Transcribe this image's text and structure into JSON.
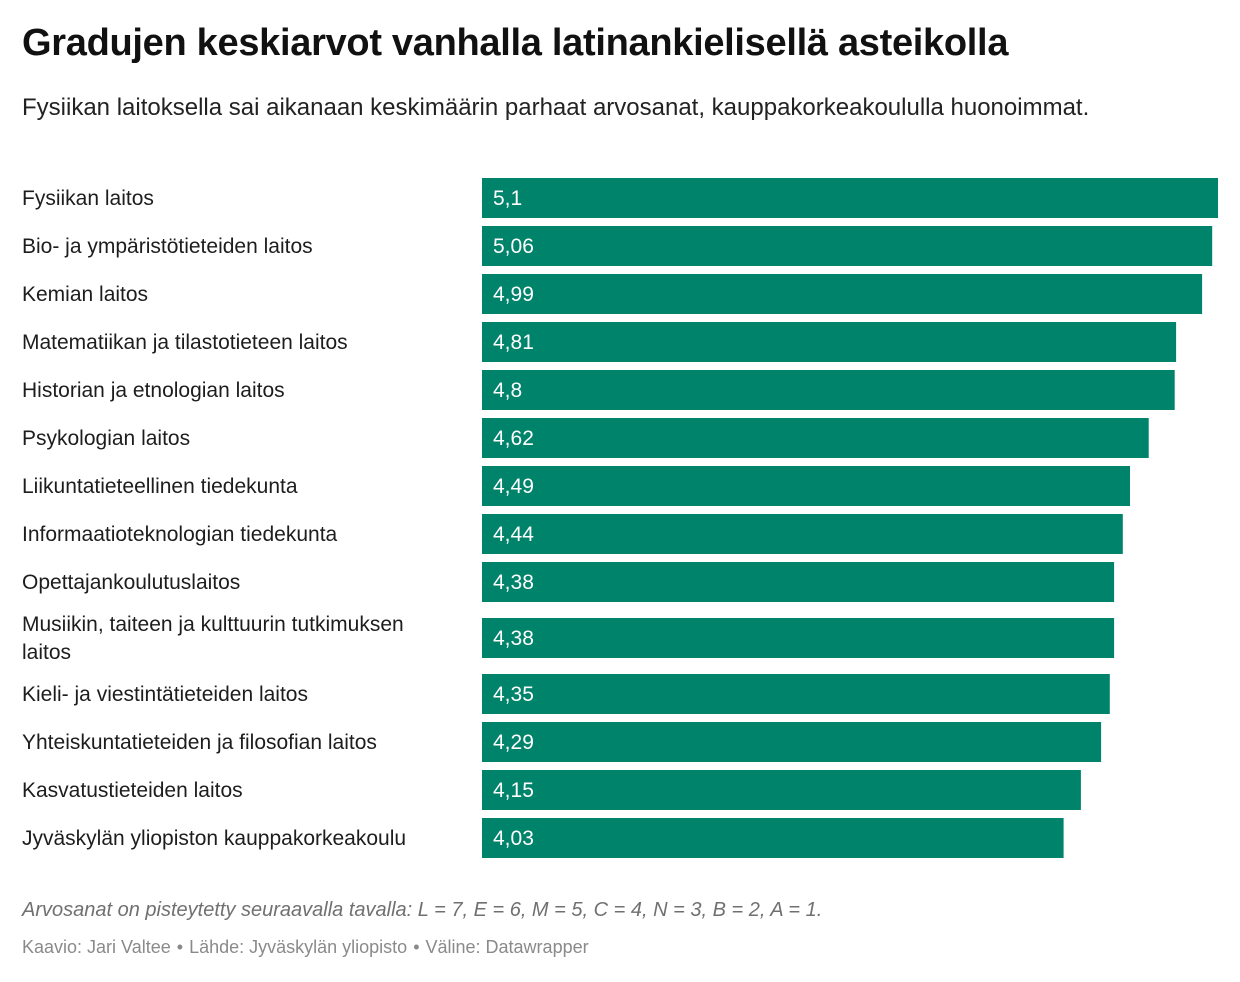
{
  "chart_data": {
    "type": "bar",
    "orientation": "horizontal",
    "title": "Gradujen keskiarvot vanhalla latinankielisellä asteikolla",
    "subtitle": "Fysiikan laitoksella sai aikanaan keskimäärin parhaat arvosanat, kauppakorkeakoululla huonoimmat.",
    "categories": [
      [
        "Fysiikan laitos"
      ],
      [
        "Bio- ja ympäristötieteiden laitos"
      ],
      [
        "Kemian laitos"
      ],
      [
        "Matematiikan ja tilastotieteen laitos"
      ],
      [
        "Historian ja etnologian laitos"
      ],
      [
        "Psykologian laitos"
      ],
      [
        "Liikuntatieteellinen tiedekunta"
      ],
      [
        "Informaatioteknologian tiedekunta"
      ],
      [
        "Opettajankoulutuslaitos"
      ],
      [
        "Musiikin, taiteen ja kulttuurin tutkimuksen",
        "laitos"
      ],
      [
        "Kieli- ja viestintätieteiden laitos"
      ],
      [
        "Yhteiskuntatieteiden ja filosofian laitos"
      ],
      [
        "Kasvatustieteiden laitos"
      ],
      [
        "Jyväskylän yliopiston kauppakorkeakoulu"
      ]
    ],
    "values": [
      5.1,
      5.06,
      4.99,
      4.81,
      4.8,
      4.62,
      4.49,
      4.44,
      4.38,
      4.38,
      4.35,
      4.29,
      4.15,
      4.03
    ],
    "value_labels": [
      "5,1",
      "5,06",
      "4,99",
      "4,81",
      "4,8",
      "4,62",
      "4,49",
      "4,44",
      "4,38",
      "4,38",
      "4,35",
      "4,29",
      "4,15",
      "4,03"
    ],
    "xlim": [
      0,
      5.1
    ],
    "bar_color": "#00836b",
    "value_label_color": "#ffffff",
    "grid": false
  },
  "footer": {
    "note": "Arvosanat on pisteytetty seuraavalla tavalla: L = 7, E = 6, M = 5, C = 4, N = 3, B = 2, A = 1.",
    "credit": "Kaavio: Jari Valtee",
    "source": "Lähde: Jyväskylän yliopisto",
    "tool": "Väline: Datawrapper",
    "separator": "•"
  }
}
